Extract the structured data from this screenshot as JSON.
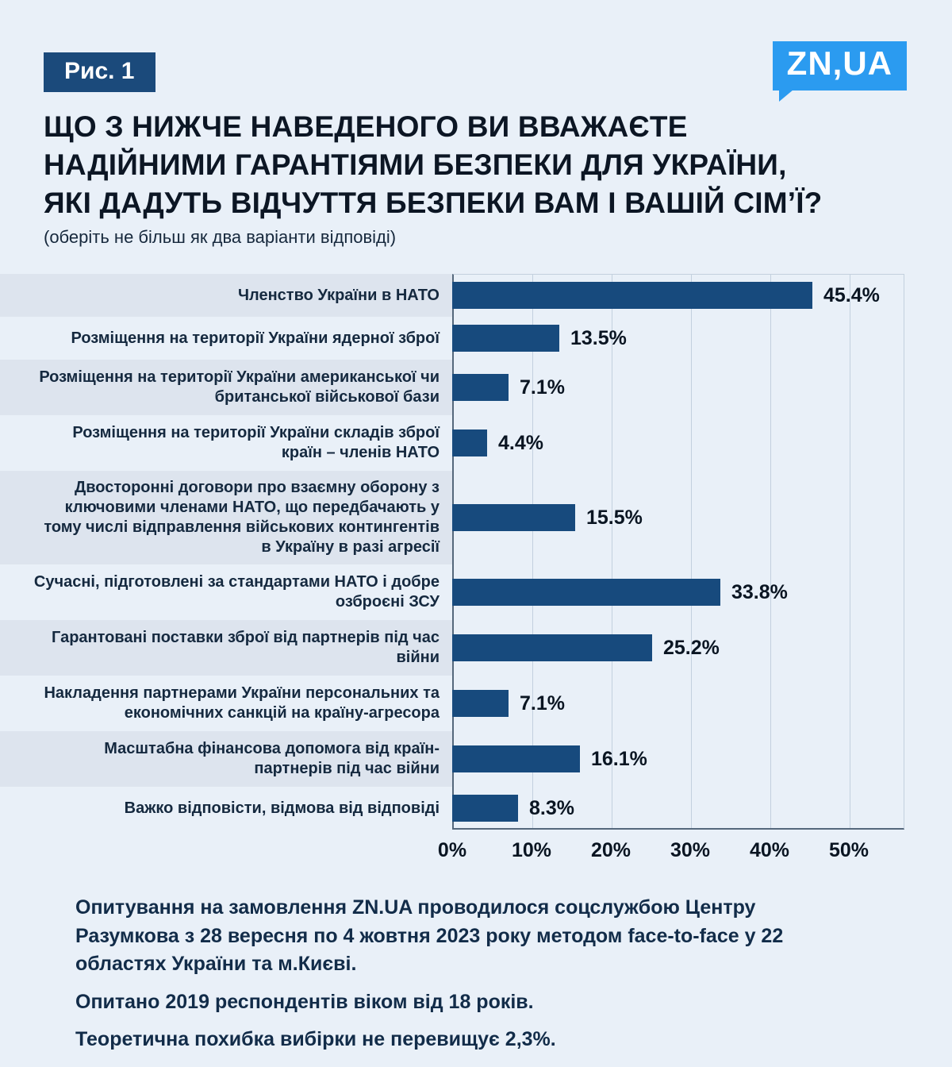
{
  "figure_label": "Рис. 1",
  "logo_text": "ZN,UA",
  "title_lines": [
    "ЩО З НИЖЧЕ НАВЕДЕНОГО ВИ ВВАЖАЄТЕ",
    "НАДІЙНИМИ ГАРАНТІЯМИ БЕЗПЕКИ ДЛЯ УКРАЇНИ,",
    "ЯКІ ДАДУТЬ ВІДЧУТТЯ БЕЗПЕКИ ВАМ І ВАШІЙ СІМ’Ї?"
  ],
  "subtitle": "(оберіть не більш як два варіанти відповіді)",
  "chart_data": {
    "type": "bar",
    "orientation": "horizontal",
    "categories": [
      "Членство України в НАТО",
      "Розміщення на території України ядерної зброї",
      "Розміщення на території України американської чи британської військової бази",
      "Розміщення на території України складів зброї країн – членів НАТО",
      "Двосторонні договори про взаємну оборону з ключовими членами НАТО, що передбачають у тому числі відправлення військових контингентів в Україну в разі агресії",
      "Сучасні, підготовлені за стандартами НАТО і добре озброєні ЗСУ",
      "Гарантовані поставки зброї від партнерів під час війни",
      "Накладення партнерами України персональних та економічних санкцій на країну-агресора",
      "Масштабна фінансова допомога від країн-партнерів під час війни",
      "Важко відповісти, відмова від відповіді"
    ],
    "values": [
      45.4,
      13.5,
      7.1,
      4.4,
      15.5,
      33.8,
      25.2,
      7.1,
      16.1,
      8.3
    ],
    "value_labels": [
      "45.4%",
      "13.5%",
      "7.1%",
      "4.4%",
      "15.5%",
      "33.8%",
      "25.2%",
      "7.1%",
      "16.1%",
      "8.3%"
    ],
    "x_ticks": [
      "0%",
      "10%",
      "20%",
      "30%",
      "40%",
      "50%"
    ],
    "xlim": [
      0,
      57
    ],
    "grid": true,
    "legend": false,
    "bar_color": "#174a7d",
    "striped_row_indexes": [
      0,
      2,
      4,
      6,
      8
    ]
  },
  "footnotes": [
    "Опитування на замовлення ZN.UA проводилося соцслужбою Центру Разумкова з 28 вересня по 4 жовтня 2023 року методом face-to-face у 22 областях України та м.Києві.",
    "Опитано 2019 респондентів віком від 18 років.",
    "Теоретична похибка вибірки не перевищує 2,3%."
  ],
  "colors": {
    "page_background": "#e9f0f8",
    "badge_background": "#1b4a7b",
    "logo_background": "#2b9bf0",
    "bar": "#174a7d",
    "row_stripe": "#dde4ee",
    "gridline": "#c3d0de",
    "axis": "#55687c",
    "text": "#0c1624"
  }
}
